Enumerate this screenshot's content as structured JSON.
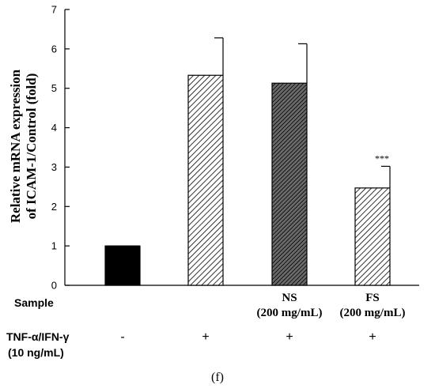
{
  "chart_data": {
    "type": "bar",
    "ylabel_lines": [
      "Relative mRNA expression",
      "of ICAM-1/Control (fold)"
    ],
    "ylim": [
      0,
      7
    ],
    "yticks": [
      0,
      1,
      2,
      3,
      4,
      5,
      6,
      7
    ],
    "grid": false,
    "bars": [
      {
        "value": 1.0,
        "error": 0.0,
        "fill": "solid",
        "sample_label": [],
        "tnf": "-",
        "significance": ""
      },
      {
        "value": 5.33,
        "error": 0.95,
        "fill": "hatch-light",
        "sample_label": [],
        "tnf": "+",
        "significance": ""
      },
      {
        "value": 5.13,
        "error": 1.0,
        "fill": "hatch-dark",
        "sample_label": [
          "NS",
          "(200 mg/mL)"
        ],
        "tnf": "+",
        "significance": ""
      },
      {
        "value": 2.47,
        "error": 0.55,
        "fill": "hatch-light",
        "sample_label": [
          "FS",
          "(200 mg/mL)"
        ],
        "tnf": "+",
        "significance": "***"
      }
    ],
    "row_labels": {
      "sample": "Sample",
      "tnf_lines": [
        "TNF-α/IFN-γ",
        "(10 ng/mL)"
      ]
    },
    "panel_label": "(f)",
    "colors": {
      "solid": "#000000",
      "hatch": "#000000",
      "background": "#ffffff"
    }
  }
}
